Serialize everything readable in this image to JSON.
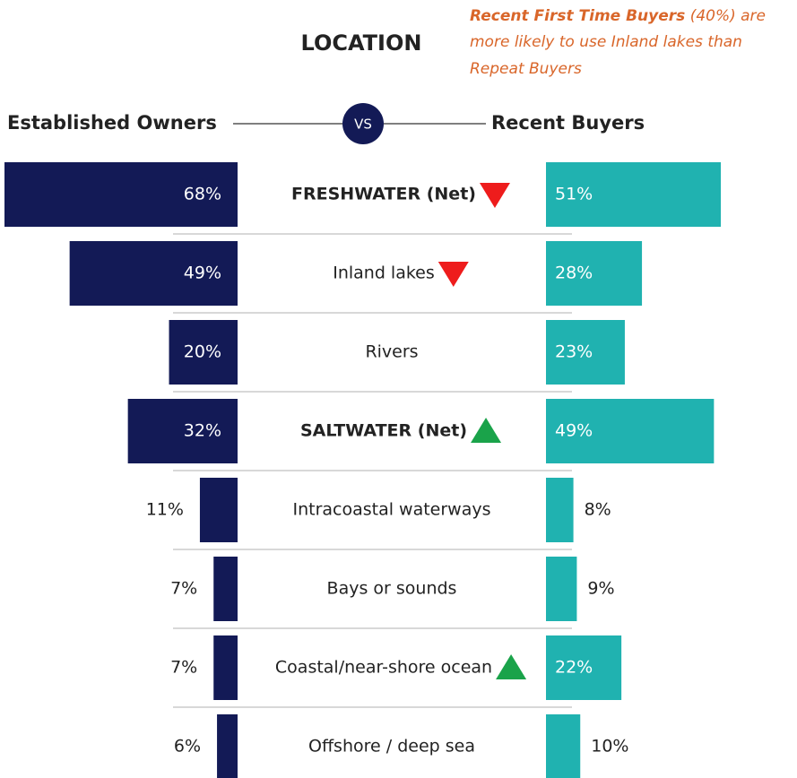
{
  "chart_data": {
    "type": "butterfly",
    "title": "LOCATION",
    "annotation": {
      "emphasis": "Recent First Time Buyers",
      "lines": [
        "(40%) are",
        "more likely to use Inland lakes than",
        "Repeat Buyers"
      ]
    },
    "left_label": "Established Owners",
    "right_label": "Recent Buyers",
    "vs_label": "VS",
    "categories": [
      "FRESHWATER (Net)",
      "Inland lakes",
      "Rivers",
      "SALTWATER (Net)",
      "Intracoastal waterways",
      "Bays or sounds",
      "Coastal/near-shore ocean",
      "Offshore / deep sea"
    ],
    "bold": [
      true,
      false,
      false,
      true,
      false,
      false,
      false,
      false
    ],
    "indicators": [
      "down",
      "down",
      null,
      "up",
      null,
      null,
      "up",
      null
    ],
    "indicator_colors": {
      "down": "#ee1c1c",
      "up": "#1aa34a"
    },
    "series": [
      {
        "name": "Established Owners",
        "color": "#131a56",
        "values": [
          68,
          49,
          20,
          32,
          11,
          7,
          7,
          6
        ],
        "value_labels": [
          "68%",
          "49%",
          "20%",
          "32%",
          "11%",
          "7%",
          "7%",
          "6%"
        ]
      },
      {
        "name": "Recent Buyers",
        "color": "#20b2b0",
        "values": [
          51,
          28,
          23,
          49,
          8,
          9,
          22,
          10
        ],
        "value_labels": [
          "51%",
          "28%",
          "23%",
          "49%",
          "8%",
          "9%",
          "22%",
          "10%"
        ]
      }
    ],
    "xlim": [
      0,
      68
    ]
  }
}
